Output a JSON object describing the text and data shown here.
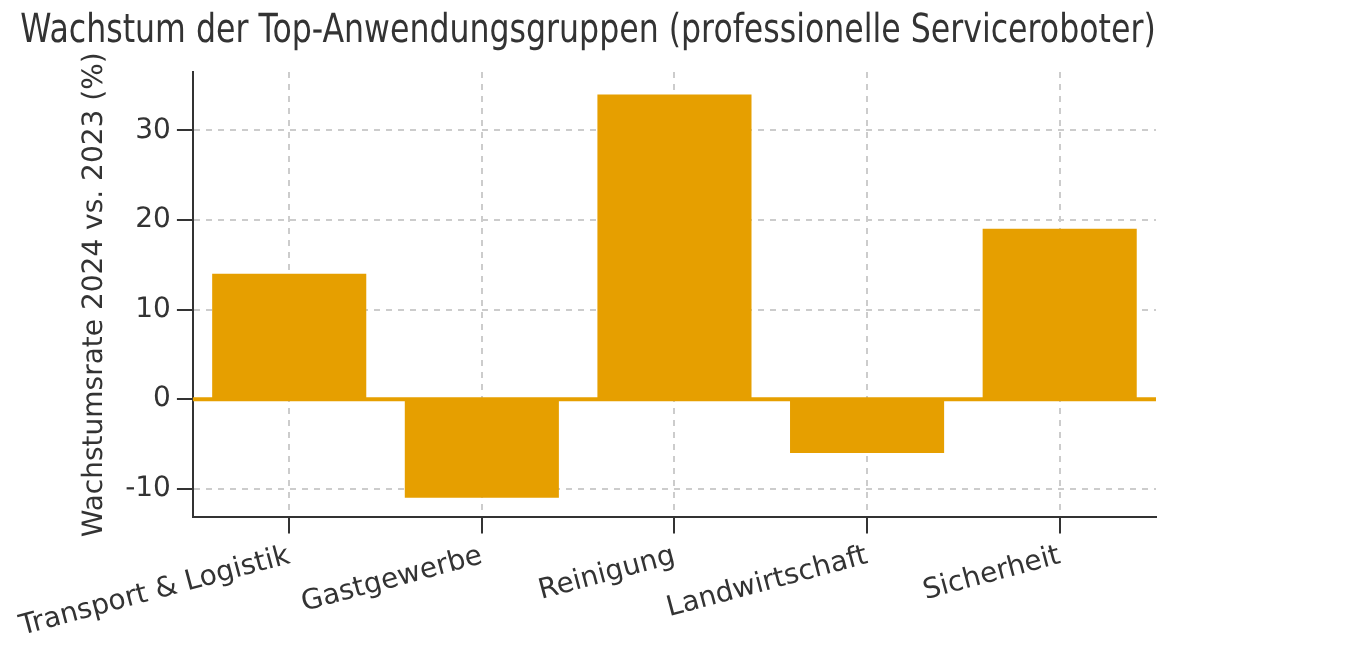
{
  "chart_data": {
    "type": "bar",
    "title": "Wachstum der Top-Anwendungsgruppen (professionelle Serviceroboter)",
    "ylabel": "Wachstumsrate 2024 vs. 2023 (%)",
    "categories": [
      "Transport & Logistik",
      "Gastgewerbe",
      "Reinigung",
      "Landwirtschaft",
      "Sicherheit"
    ],
    "values": [
      14,
      -11,
      34,
      -6,
      19
    ],
    "color": "#e69f00",
    "ylim": [
      -13.2,
      36.5
    ],
    "yticks": [
      -10,
      0,
      10,
      20,
      30
    ],
    "grid": true,
    "ref_lines": [
      {
        "axis": "y",
        "value": 0,
        "color": "#e69f00"
      }
    ]
  }
}
